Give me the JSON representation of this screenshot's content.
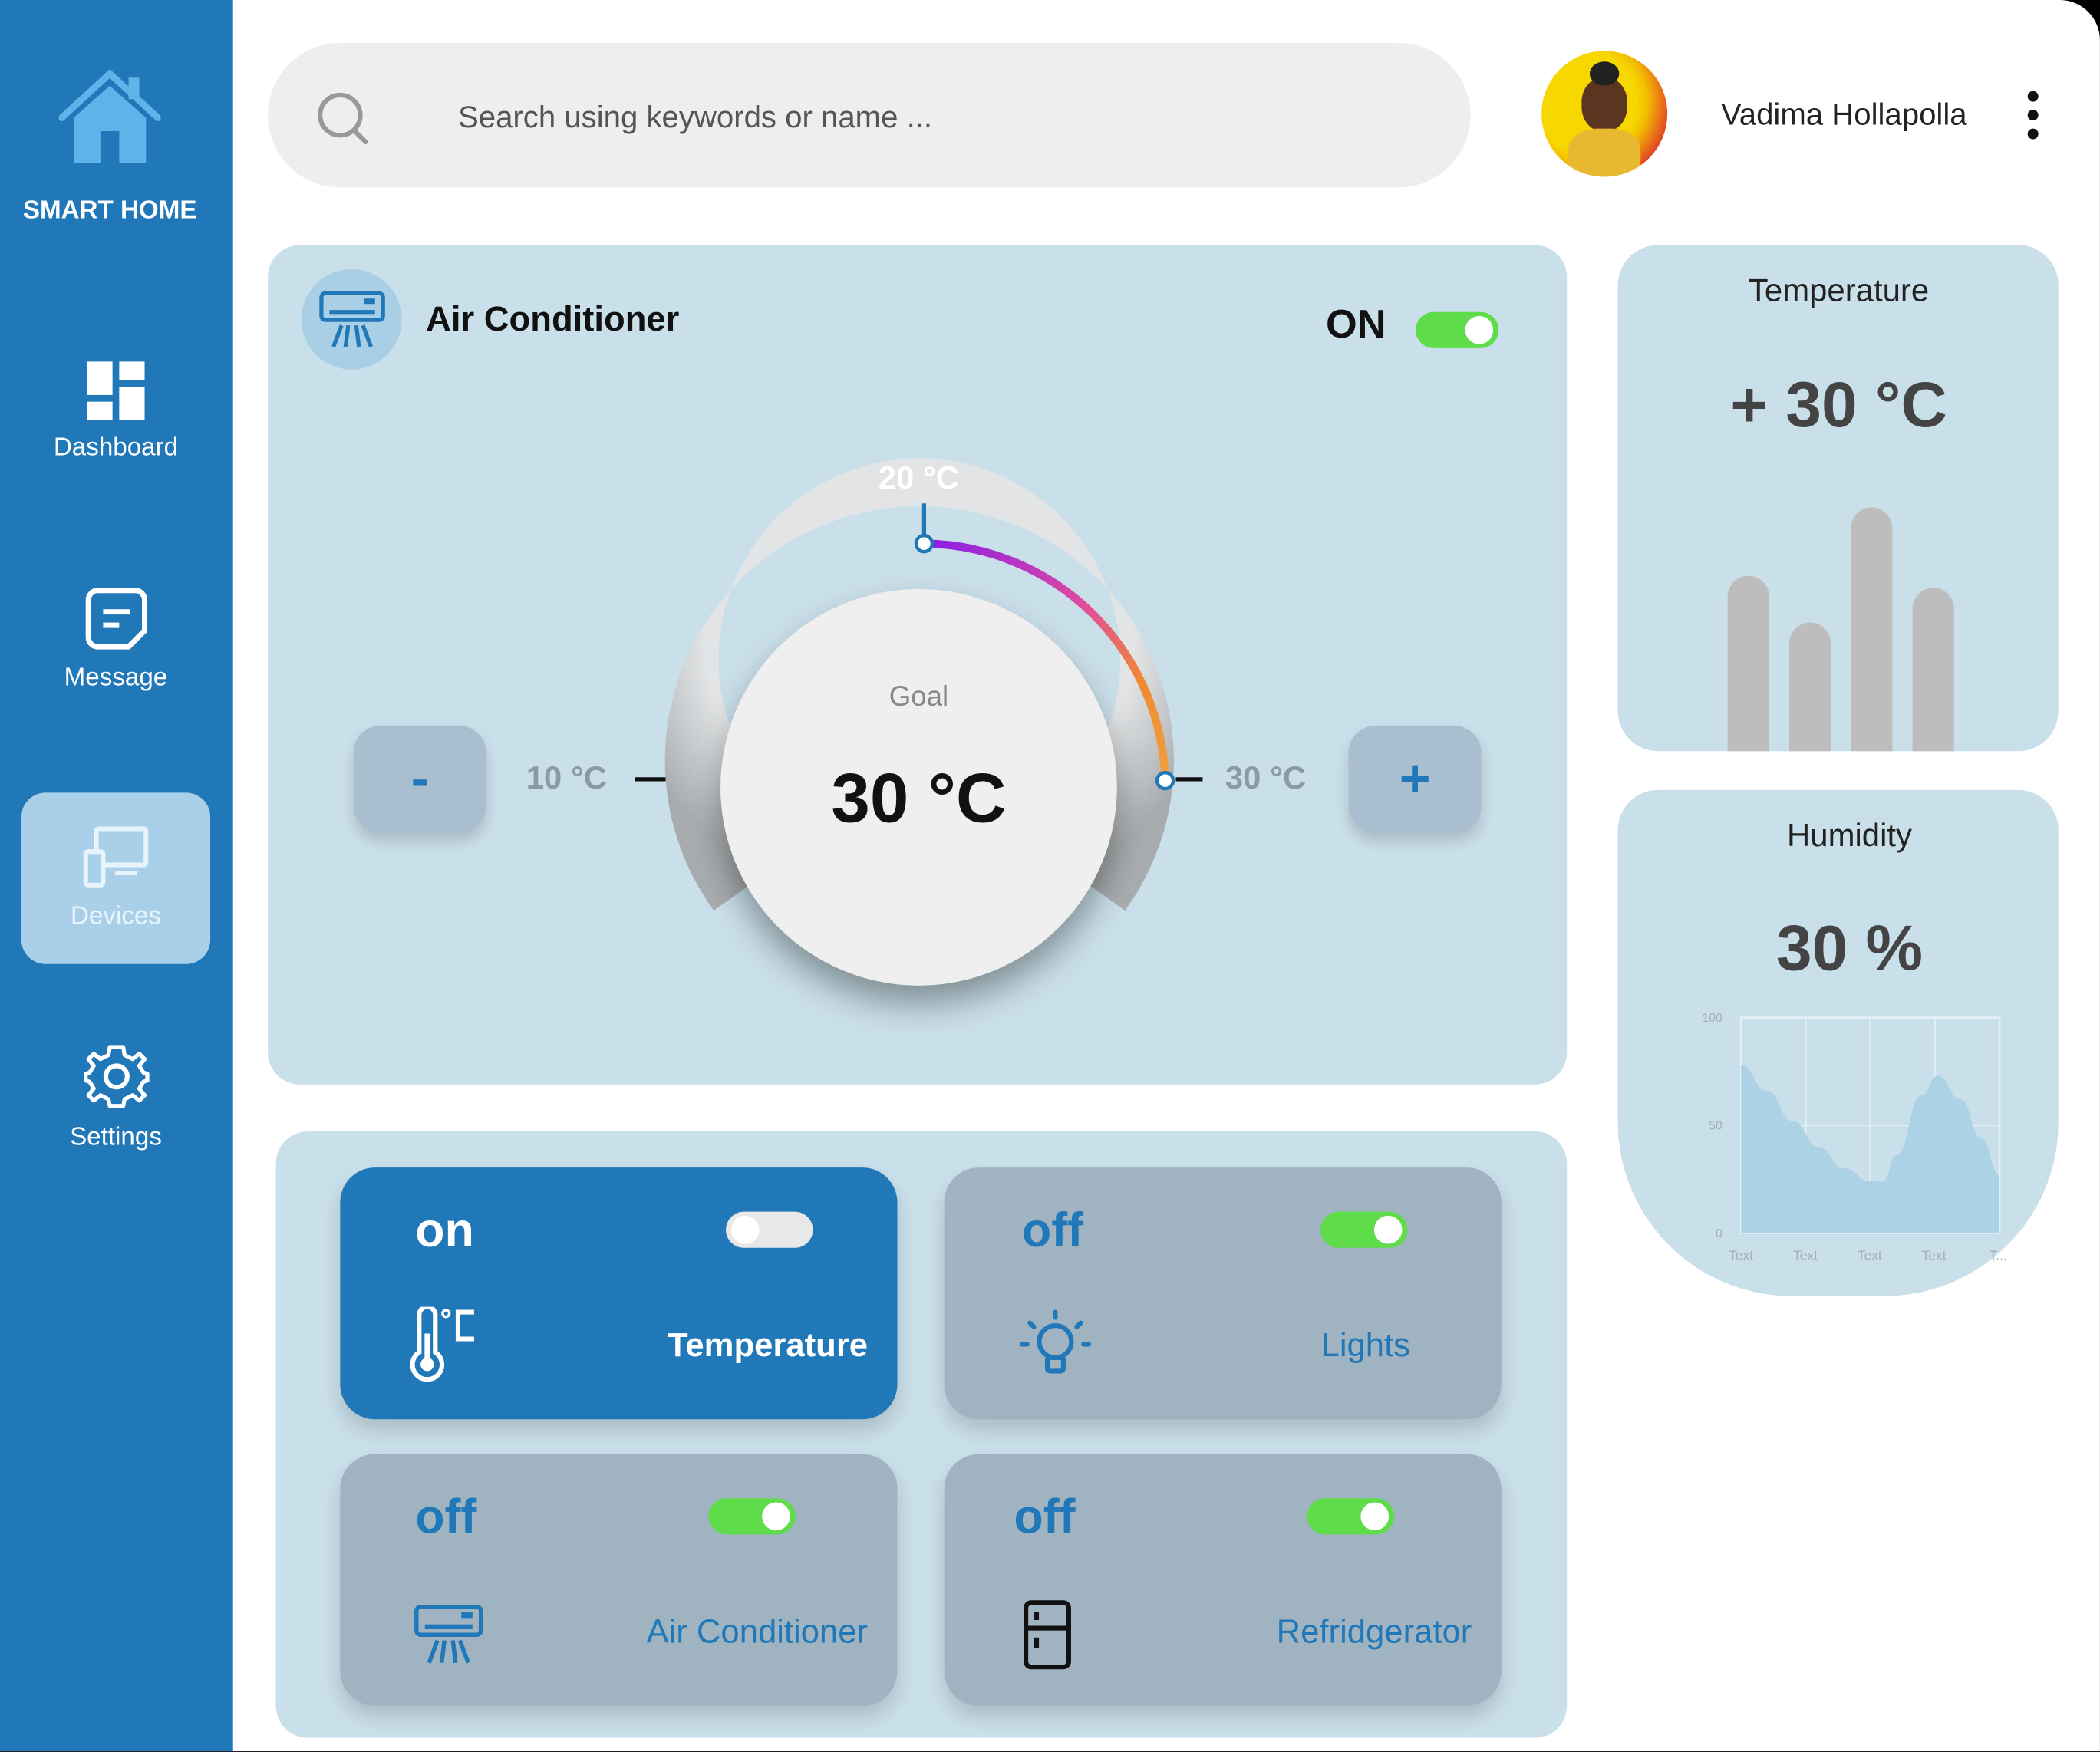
{
  "brand": {
    "name": "SMART HOME"
  },
  "sidebar": {
    "items": [
      {
        "label": "Dashboard",
        "icon": "dashboard-icon"
      },
      {
        "label": "Message",
        "icon": "message-icon"
      },
      {
        "label": "Devices",
        "icon": "devices-icon",
        "active": true
      },
      {
        "label": "Settings",
        "icon": "gear-icon"
      }
    ]
  },
  "search": {
    "placeholder": "Search using keywords or name ..."
  },
  "user": {
    "name": "Vadima Hollapolla"
  },
  "ac": {
    "title": "Air Conditioner",
    "power_label": "ON",
    "power_on": true,
    "dial": {
      "min_label": "10 °C",
      "mid_label": "20 °C",
      "max_label": "30 °C",
      "goal_label": "Goal",
      "goal_value": "30 °C",
      "minus": "-",
      "plus": "+"
    }
  },
  "temperature_card": {
    "title": "Temperature",
    "value": "+ 30 °C",
    "bars": [
      0.72,
      0.53,
      1.0,
      0.67
    ]
  },
  "humidity_card": {
    "title": "Humidity",
    "value": "30 %",
    "chart_data": {
      "type": "area",
      "yticks": [
        "100",
        "50",
        "0"
      ],
      "xticks": [
        "Text",
        "Text",
        "Text",
        "Text",
        "T..."
      ],
      "ylim": [
        0,
        100
      ],
      "x": [
        0,
        0.1,
        0.2,
        0.3,
        0.4,
        0.5,
        0.55,
        0.6,
        0.7,
        0.76,
        0.85,
        0.93,
        1.0
      ],
      "values": [
        78,
        66,
        52,
        40,
        30,
        24,
        24,
        36,
        64,
        73,
        62,
        44,
        27
      ],
      "grid": true
    }
  },
  "devices": [
    {
      "state": "on",
      "name": "Temperature",
      "toggle_on": false,
      "icon": "thermometer-celsius-icon",
      "active": true
    },
    {
      "state": "off",
      "name": "Lights",
      "toggle_on": true,
      "icon": "lightbulb-icon"
    },
    {
      "state": "off",
      "name": "Air Conditioner",
      "toggle_on": true,
      "icon": "air-conditioner-icon"
    },
    {
      "state": "off",
      "name": "Refridgerator",
      "toggle_on": true,
      "icon": "refrigerator-icon"
    }
  ],
  "colors": {
    "primary": "#2178b8",
    "panel": "#c9dfe9",
    "toggle_on": "#5fdc4a",
    "device_off": "#9fb3c1"
  }
}
